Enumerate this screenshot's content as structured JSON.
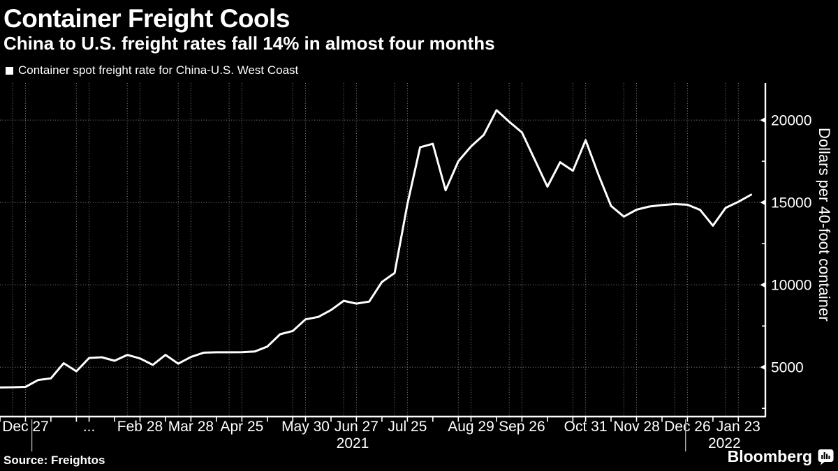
{
  "header": {
    "title": "Container Freight Cools",
    "subtitle": "China to U.S. freight rates fall 14% in almost four months",
    "legend_label": "Container spot freight rate for China-U.S. West Coast"
  },
  "footer": {
    "source": "Source: Freightos",
    "brand": "Bloomberg"
  },
  "chart_data": {
    "type": "line",
    "series_name": "Container spot freight rate for China-U.S. West Coast",
    "line_color": "#ffffff",
    "background_color": "#000000",
    "grid": {
      "color": "#8a8a8a",
      "style": "dotted",
      "vertical_indices": [
        1,
        2,
        6,
        7,
        10,
        11,
        14,
        15,
        18,
        19,
        23,
        24,
        27,
        28,
        31,
        32,
        36,
        37,
        40,
        41,
        45,
        46,
        49,
        50,
        53,
        54,
        57,
        58
      ]
    },
    "x_weekly_dates": [
      "2020-12-13",
      "2020-12-20",
      "2020-12-27",
      "2021-01-03",
      "2021-01-10",
      "2021-01-17",
      "2021-01-24",
      "2021-01-31",
      "2021-02-07",
      "2021-02-14",
      "2021-02-21",
      "2021-02-28",
      "2021-03-07",
      "2021-03-14",
      "2021-03-21",
      "2021-03-28",
      "2021-04-04",
      "2021-04-11",
      "2021-04-18",
      "2021-04-25",
      "2021-05-02",
      "2021-05-09",
      "2021-05-16",
      "2021-05-23",
      "2021-05-30",
      "2021-06-06",
      "2021-06-13",
      "2021-06-20",
      "2021-06-27",
      "2021-07-04",
      "2021-07-11",
      "2021-07-18",
      "2021-07-25",
      "2021-08-01",
      "2021-08-08",
      "2021-08-15",
      "2021-08-22",
      "2021-08-29",
      "2021-09-05",
      "2021-09-12",
      "2021-09-19",
      "2021-09-26",
      "2021-10-03",
      "2021-10-10",
      "2021-10-17",
      "2021-10-24",
      "2021-10-31",
      "2021-11-07",
      "2021-11-14",
      "2021-11-21",
      "2021-11-28",
      "2021-12-05",
      "2021-12-12",
      "2021-12-19",
      "2021-12-26",
      "2022-01-02",
      "2022-01-09",
      "2022-01-16",
      "2022-01-23",
      "2022-01-30"
    ],
    "values": [
      3770,
      3780,
      3800,
      4220,
      4320,
      5240,
      4750,
      5560,
      5600,
      5390,
      5745,
      5530,
      5140,
      5745,
      5210,
      5620,
      5880,
      5900,
      5900,
      5910,
      5950,
      6250,
      7000,
      7200,
      7900,
      8050,
      8470,
      9030,
      8860,
      8980,
      10170,
      10720,
      14900,
      18350,
      18560,
      15740,
      17500,
      18400,
      19100,
      20600,
      19900,
      19250,
      17600,
      15960,
      17440,
      16920,
      18780,
      16700,
      14790,
      14140,
      14560,
      14750,
      14840,
      14900,
      14860,
      14550,
      13590,
      14670,
      15040,
      15470
    ],
    "x_tick_labels": [
      {
        "index": 2,
        "label": "Dec 27"
      },
      {
        "index": 7,
        "label": "..."
      },
      {
        "index": 11,
        "label": "Feb 28"
      },
      {
        "index": 15,
        "label": "Mar 28"
      },
      {
        "index": 19,
        "label": "Apr 25"
      },
      {
        "index": 24,
        "label": "May 30"
      },
      {
        "index": 28,
        "label": "Jun 27"
      },
      {
        "index": 32,
        "label": "Jul 25"
      },
      {
        "index": 37,
        "label": "Aug 29"
      },
      {
        "index": 41,
        "label": "Sep 26"
      },
      {
        "index": 46,
        "label": "Oct 31"
      },
      {
        "index": 50,
        "label": "Nov 28"
      },
      {
        "index": 54,
        "label": "Dec 26"
      },
      {
        "index": 58,
        "label": "Jan 23"
      }
    ],
    "year_labels": [
      {
        "label": "2021",
        "center_index": 27.7
      },
      {
        "label": "2022",
        "center_index": 56.9
      }
    ],
    "year_divider_indices": [
      2.5,
      53.85
    ],
    "y_axis": {
      "side": "right",
      "title": "Dollars per 40-foot container",
      "ticks": [
        5000,
        10000,
        15000,
        20000
      ],
      "minor_ticks": [
        2500,
        7500,
        12500,
        17500
      ],
      "range": [
        2000,
        22250
      ]
    }
  }
}
